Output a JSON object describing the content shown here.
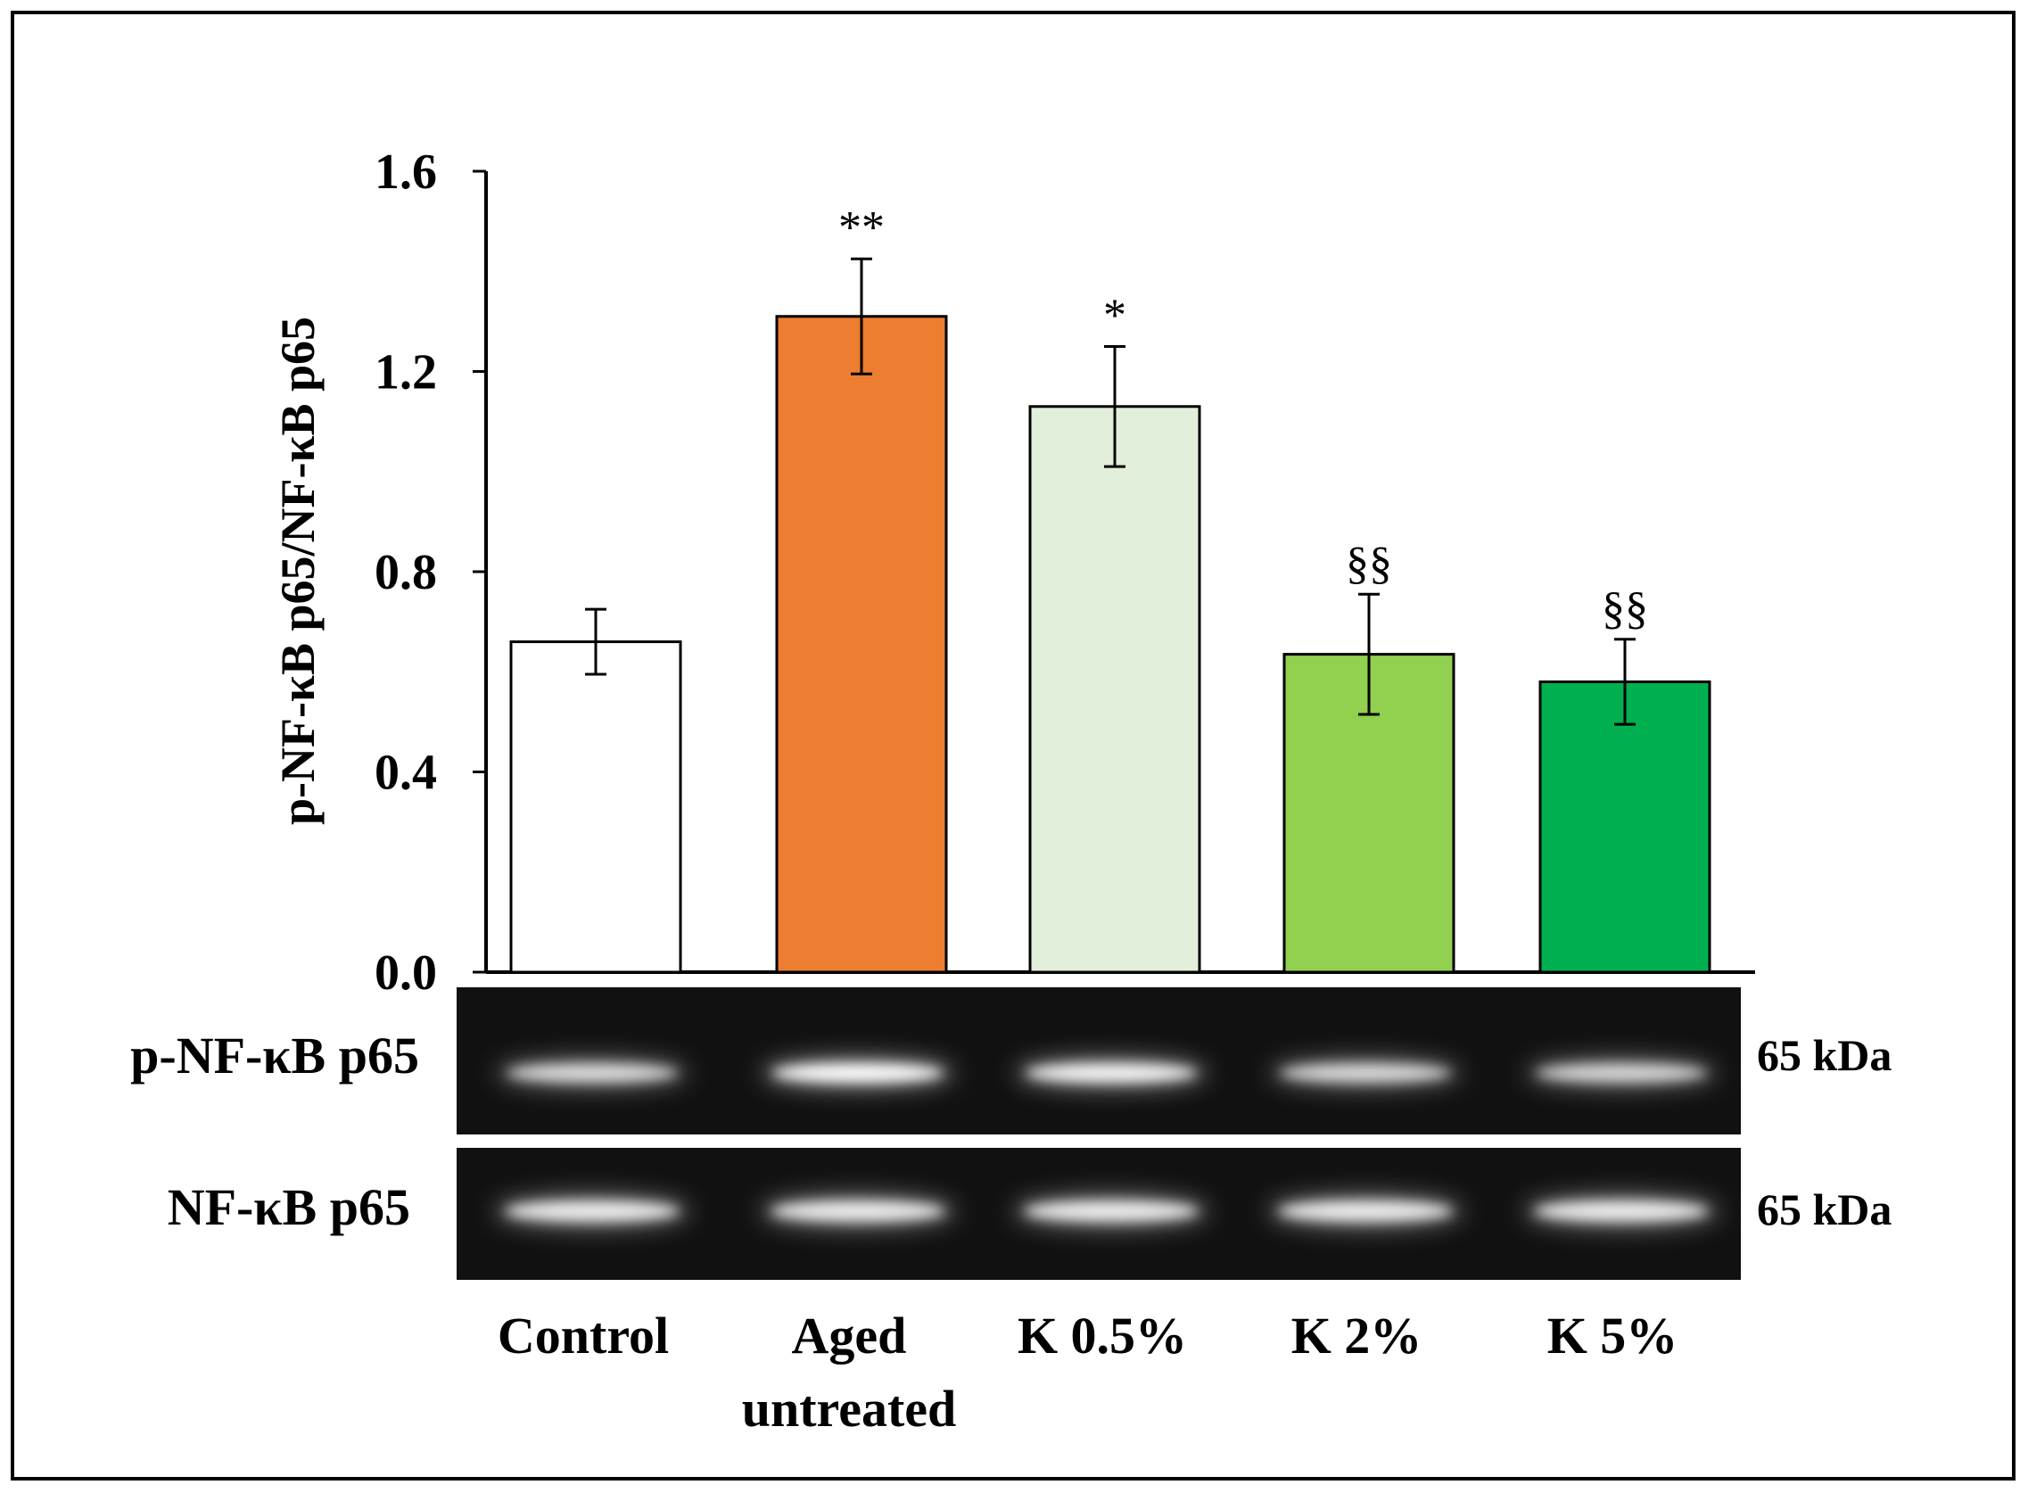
{
  "chart_data": {
    "type": "bar",
    "title": "",
    "xlabel": "",
    "ylabel": "p-NF-κB p65/NF-κB p65",
    "ylim": [
      0,
      1.6
    ],
    "yticks": [
      "0.0",
      "0.4",
      "0.8",
      "1.2",
      "1.6"
    ],
    "ytick_values": [
      0,
      0.4,
      0.8,
      1.2,
      1.6
    ],
    "categories": [
      "Control",
      "Aged untreated",
      "K 0.5%",
      "K 2%",
      "K 5%"
    ],
    "category_lines": [
      [
        "Control"
      ],
      [
        "Aged",
        "untreated"
      ],
      [
        "K 0.5%"
      ],
      [
        "K 2%"
      ],
      [
        "K 5%"
      ]
    ],
    "values": [
      0.66,
      1.31,
      1.13,
      0.635,
      0.58
    ],
    "errors": [
      0.065,
      0.115,
      0.12,
      0.12,
      0.085
    ],
    "significance": [
      "",
      "**",
      "*",
      "§§",
      "§§"
    ],
    "colors": [
      "#ffffff",
      "#ed7d31",
      "#e2efda",
      "#92d050",
      "#00b050"
    ]
  },
  "blots": [
    {
      "label": "p-NF-κB p65",
      "size": "65 kDa"
    },
    {
      "label": "NF-κB p65",
      "size": "65 kDa"
    }
  ]
}
